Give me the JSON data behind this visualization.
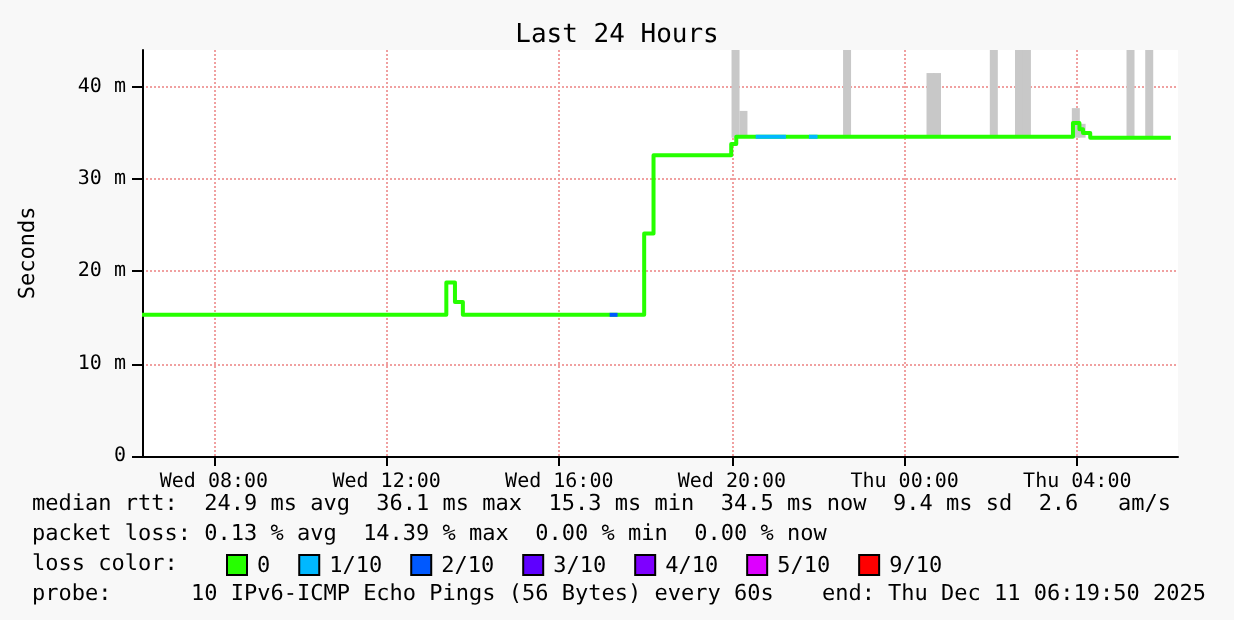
{
  "chart_data": {
    "type": "line",
    "title": "Last 24 Hours",
    "ylabel": "Seconds",
    "xlim": [
      "2025-12-10T06:20",
      "2025-12-11T06:20"
    ],
    "ylim": [
      0,
      44
    ],
    "xticks": [
      {
        "value": "2025-12-10T08:00",
        "label": "Wed 08:00"
      },
      {
        "value": "2025-12-10T12:00",
        "label": "Wed 12:00"
      },
      {
        "value": "2025-12-10T16:00",
        "label": "Wed 16:00"
      },
      {
        "value": "2025-12-10T20:00",
        "label": "Wed 20:00"
      },
      {
        "value": "2025-12-11T00:00",
        "label": "Thu 00:00"
      },
      {
        "value": "2025-12-11T04:00",
        "label": "Thu 04:00"
      }
    ],
    "yticks": [
      0,
      {
        "value": 10,
        "label": "10 m"
      },
      {
        "value": 20,
        "label": "20 m"
      },
      {
        "value": 30,
        "label": "30 m"
      },
      {
        "value": 40,
        "label": "40 m"
      }
    ],
    "grid": true,
    "legend": "bottom",
    "line_style": "solid",
    "marker": "none",
    "series": [
      {
        "type": "bar",
        "color": "#c8c8c8",
        "x": [
          "2025-12-10T20:05",
          "2025-12-10T20:16",
          "2025-12-10T22:40",
          "2025-12-11T00:36",
          "2025-12-11T00:45",
          "2025-12-11T02:04",
          "2025-12-11T02:39",
          "2025-12-11T02:50",
          "2025-12-11T03:58",
          "2025-12-11T04:06",
          "2025-12-11T05:14",
          "2025-12-11T05:40"
        ],
        "base": [
          34.5,
          34.5,
          34.5,
          34.5,
          34.5,
          34.5,
          34.5,
          34.5,
          34.5,
          34.5,
          34.5,
          34.5
        ],
        "values": [
          9.5,
          2.9,
          9.5,
          7,
          7,
          9.5,
          9.5,
          9.5,
          3.2,
          1.5,
          9.5,
          9.5
        ]
      },
      {
        "type": "step",
        "name": "0",
        "color": "#26ff00",
        "x": [
          "2025-12-10T06:20",
          "2025-12-10T13:23",
          "2025-12-10T13:35",
          "2025-12-10T13:46",
          "2025-12-10T17:21",
          "2025-12-10T17:58",
          "2025-12-10T18:11",
          "2025-12-10T19:59",
          "2025-12-10T20:06",
          "2025-12-10T21:59",
          "2025-12-11T03:54",
          "2025-12-11T04:03",
          "2025-12-11T04:08",
          "2025-12-11T04:18",
          "2025-12-11T06:10"
        ],
        "values": [
          15.3,
          18.8,
          16.7,
          15.3,
          15.3,
          24.1,
          32.6,
          33.8,
          34.6,
          34.6,
          36.1,
          35.4,
          35,
          34.5,
          34.5
        ]
      },
      {
        "type": "step",
        "name": "1/10",
        "color": "#00b8ff",
        "x": [
          "2025-12-10T20:33",
          "2025-12-10T20:45",
          "2025-12-10T21:15",
          "2025-12-10T21:47",
          "2025-12-10T21:59"
        ],
        "values": [
          34.6,
          34.6,
          null,
          34.6,
          34.6
        ]
      },
      {
        "type": "step",
        "name": "2/10",
        "color": "#0059ff",
        "x": [
          "2025-12-10T17:10",
          "2025-12-10T17:21"
        ],
        "values": [
          15.3,
          15.3
        ]
      },
      {
        "type": "step",
        "name": "3/10",
        "color": "#5e00ff"
      },
      {
        "type": "step",
        "name": "4/10",
        "color": "#7e00ff"
      },
      {
        "type": "step",
        "name": "5/10",
        "color": "#dd00ff"
      },
      {
        "type": "step",
        "name": "9/10",
        "color": "#ff0000"
      }
    ],
    "annotations": [
      "median rtt:  24.9 ms avg  36.1 ms max  15.3 ms min  34.5 ms now  9.4 ms sd  2.6   am/s",
      "packet loss: 0.13 % avg  14.39 % max  0.00 % min  0.00 % now",
      "loss color:",
      "probe:      10 IPv6-ICMP Echo Pings (56 Bytes) every 60s",
      "end: Thu Dec 11 06:19:50 2025"
    ]
  }
}
